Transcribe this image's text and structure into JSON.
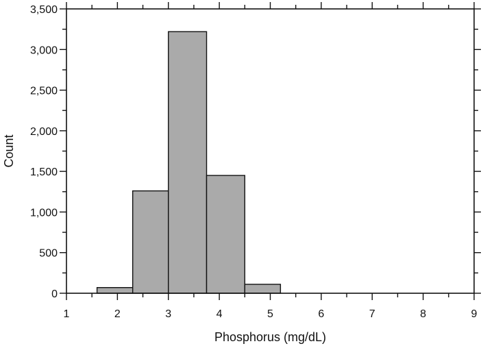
{
  "chart_data": {
    "type": "bar",
    "title": "",
    "xlabel": "Phosphorus (mg/dL)",
    "ylabel": "Count",
    "xlim": [
      1,
      9
    ],
    "ylim": [
      0,
      3500
    ],
    "x_ticks": [
      1,
      2,
      3,
      4,
      5,
      6,
      7,
      8,
      9
    ],
    "x_tick_labels": [
      "1",
      "2",
      "3",
      "4",
      "5",
      "6",
      "7",
      "8",
      "9"
    ],
    "y_ticks": [
      0,
      500,
      1000,
      1500,
      2000,
      2500,
      3000,
      3500
    ],
    "y_tick_labels": [
      "0",
      "500",
      "1,000",
      "1,500",
      "2,000",
      "2,500",
      "3,000",
      "3,500"
    ],
    "grid": false,
    "bar_color": "#aaaaaa",
    "bins": [
      {
        "x0": 1.6,
        "x1": 2.3,
        "value": 70
      },
      {
        "x0": 2.3,
        "x1": 3.0,
        "value": 1260
      },
      {
        "x0": 3.0,
        "x1": 3.75,
        "value": 3220
      },
      {
        "x0": 3.75,
        "x1": 4.5,
        "value": 1450
      },
      {
        "x0": 4.5,
        "x1": 5.2,
        "value": 110
      }
    ]
  }
}
